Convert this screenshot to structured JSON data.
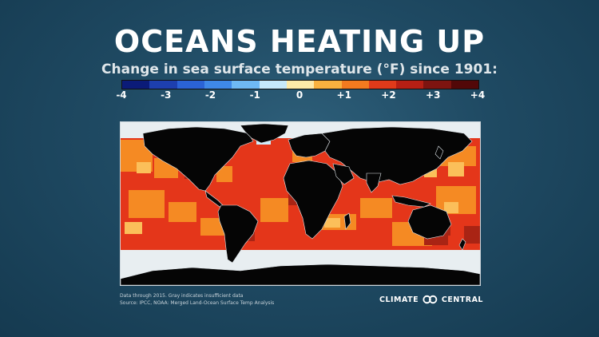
{
  "title": "OCEANS HEATING UP",
  "subtitle": "Change in sea surface temperature (°F) since 1901:",
  "legend": {
    "colors": [
      "#0b1b78",
      "#1d3fae",
      "#2b63d6",
      "#3f88e8",
      "#6fb9f4",
      "#c6e8fb",
      "#fde9a8",
      "#f9b13f",
      "#f37a1f",
      "#e03a1a",
      "#b51f14",
      "#7d1410",
      "#520808"
    ],
    "ticks": [
      "-4",
      "-3",
      "-2",
      "-1",
      "0",
      "+1",
      "+2",
      "+3",
      "+4"
    ]
  },
  "footnote": {
    "line1": "Data through 2015. Gray indicates insufficient data",
    "line2": "Source: IPCC, NOAA: Merged Land-Ocean Surface Temp Analysis"
  },
  "logo": {
    "left": "CLIMATE",
    "right": "CENTRAL"
  }
}
